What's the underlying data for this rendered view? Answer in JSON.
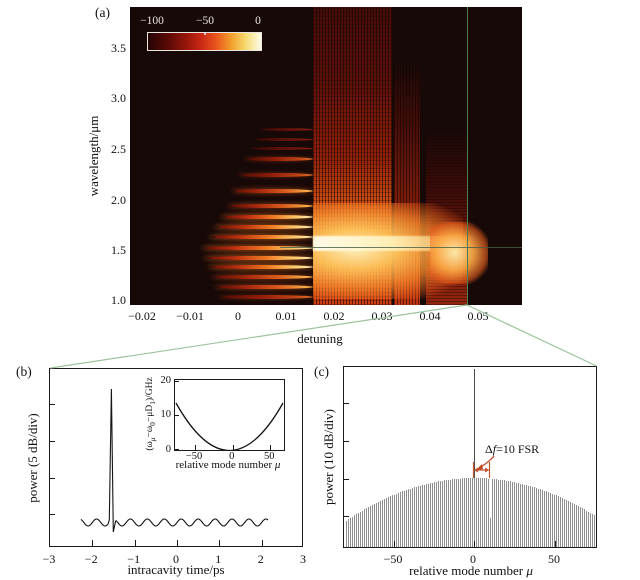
{
  "figure": {
    "panel_a": {
      "label": "(a)",
      "ylabel": "wavelength/μm",
      "xlabel": "detuning",
      "yticks": [
        "3.5",
        "3.0",
        "2.5",
        "2.0",
        "1.5",
        "1.0"
      ],
      "xticks": [
        "−0.02",
        "−0.01",
        "0",
        "0.01",
        "0.02",
        "0.03",
        "0.04",
        "0.05"
      ],
      "colorbar_ticks": [
        "−100",
        "−50",
        "0"
      ]
    },
    "panel_b": {
      "label": "(b)",
      "ylabel": "power (5 dB/div)",
      "xlabel": "intracavity time/ps",
      "xticks": [
        "−3",
        "−2",
        "−1",
        "0",
        "1",
        "2",
        "3"
      ],
      "inset": {
        "ylabel_parts": [
          "(ω",
          "μ",
          "−ω",
          "0",
          "−μD",
          "1",
          ")/GHz"
        ],
        "yticks": [
          "20",
          "10",
          "0"
        ],
        "xticks": [
          "−50",
          "0",
          "50"
        ],
        "xlabel_main": "relative mode number ",
        "xlabel_mu": "μ"
      }
    },
    "panel_c": {
      "label": "(c)",
      "ylabel": "power (10 dB/div)",
      "xlabel_main": "relative mode number ",
      "xlabel_mu": "μ",
      "xticks": [
        "−50",
        "0",
        "50"
      ],
      "annotation": {
        "delta": "Δ",
        "f": "f",
        "rest": "=10 FSR"
      }
    }
  },
  "chart_data": [
    {
      "id": "a",
      "type": "heatmap",
      "xlabel": "detuning",
      "ylabel": "wavelength/μm",
      "xticks": [
        -0.02,
        -0.01,
        0,
        0.01,
        0.02,
        0.03,
        0.04,
        0.05
      ],
      "yticks": [
        3.5,
        3.0,
        2.5,
        2.0,
        1.5,
        1.0
      ],
      "xrange": [
        -0.0225,
        0.059
      ],
      "yrange": [
        1.0,
        3.9
      ],
      "colorbar": {
        "min": -100,
        "max": 0,
        "ticks": [
          -100,
          -50,
          0
        ]
      },
      "features": {
        "primary_comb": {
          "d_end": 0.0157,
          "lines": [
            {
              "wl": 2.687,
              "d0": 0.0042,
              "lvl": 1
            },
            {
              "wl": 2.587,
              "d0": 0.0029,
              "lvl": 1
            },
            {
              "wl": 2.498,
              "d0": 0.0021,
              "lvl": 1
            },
            {
              "wl": 2.399,
              "d0": 0.0015,
              "lvl": 2
            },
            {
              "wl": 2.24,
              "d0": 0.0,
              "lvl": 2
            },
            {
              "wl": 2.081,
              "d0": -0.0012,
              "lvl": 3
            },
            {
              "wl": 1.933,
              "d0": -0.0021,
              "lvl": 3
            },
            {
              "wl": 1.823,
              "d0": -0.0033,
              "lvl": 4
            },
            {
              "wl": 1.724,
              "d0": -0.0048,
              "lvl": 4
            },
            {
              "wl": 1.625,
              "d0": -0.0058,
              "lvl": 4
            },
            {
              "wl": 1.516,
              "d0": -0.0073,
              "lvl": 4
            },
            {
              "wl": 1.417,
              "d0": -0.0069,
              "lvl": 4
            },
            {
              "wl": 1.327,
              "d0": -0.006,
              "lvl": 4
            },
            {
              "wl": 1.228,
              "d0": -0.0054,
              "lvl": 3
            },
            {
              "wl": 1.129,
              "d0": -0.0048,
              "lvl": 3
            },
            {
              "wl": 1.03,
              "d0": -0.0042,
              "lvl": 2
            }
          ]
        },
        "chaotic_region": {
          "detuning_range": [
            0.0157,
            0.047
          ]
        },
        "marker_detuning": 0.0477,
        "marker_wavelength_um": 1.55
      }
    },
    {
      "id": "b",
      "type": "line",
      "xlabel": "intracavity time/ps",
      "ylabel": "power (5 dB/div)",
      "xlim": [
        -3,
        3
      ],
      "y_div_db": 5,
      "pulse_time_ps": -1.55,
      "pulse_height_db": 18,
      "background_ripple": {
        "period_ps": 0.4,
        "t_range": [
          -2.27,
          2.16
        ]
      }
    },
    {
      "id": "b-inset",
      "type": "line",
      "xlabel": "relative mode number μ",
      "ylabel": "(ωμ−ω0−μD1)/GHz",
      "xticks": [
        -50,
        0,
        50
      ],
      "yticks": [
        0,
        10,
        20
      ],
      "shape": "parabola",
      "points": [
        [
          -70,
          14
        ],
        [
          0,
          0
        ],
        [
          70,
          14
        ]
      ],
      "coeff_ghz_per_mode2": 0.0029
    },
    {
      "id": "c",
      "type": "bar",
      "xlabel": "relative mode number μ",
      "ylabel": "power (10 dB/div)",
      "xticks": [
        -50,
        0,
        50
      ],
      "mode_range": [
        -80,
        77
      ],
      "y_div_db": 10,
      "envelope": "parabolic dome",
      "envelope_peak_to_edge_db": 11,
      "pump_line_mode": 0,
      "notch_mode": 10,
      "delta_f_fsr": 10,
      "annotation": "Δf=10 FSR"
    }
  ]
}
